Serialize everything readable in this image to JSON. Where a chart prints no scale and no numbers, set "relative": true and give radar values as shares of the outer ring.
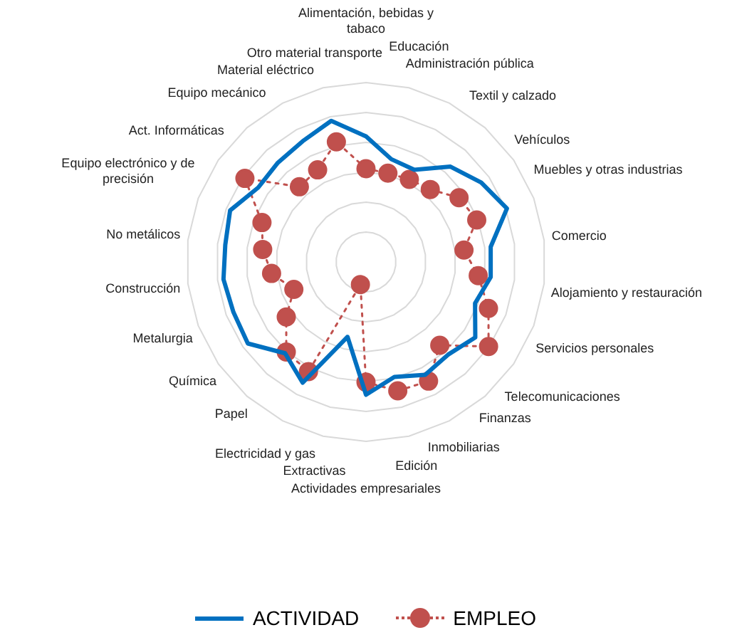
{
  "chart_data": {
    "type": "radar",
    "relative": true,
    "grid": true,
    "legend": "bottom",
    "categories": [
      "Alimentación, bebidas y tabaco",
      "Educación",
      "Administración pública",
      "Textil y calzado",
      "Vehículos",
      "Muebles y otras industrias",
      "Comercio",
      "Alojamiento y restauración",
      "Servicios personales",
      "Telecomunicaciones",
      "Finanzas",
      "Inmobiliarias",
      "Edición",
      "Actividades empresariales",
      "Extractivas",
      "Electricidad y gas",
      "Papel",
      "Química",
      "Metalurgia",
      "Construcción",
      "No metálicos",
      "Equipo electrónico y de precisión",
      "Act. Informáticas",
      "Equipo mecánico",
      "Material eléctrico",
      "Otro material transporte"
    ],
    "series": [
      {
        "name": "ACTIVIDAD",
        "color": "#0070c0",
        "marker": "none",
        "line_style": "solid",
        "values": [
          0.7,
          0.59,
          0.58,
          0.71,
          0.78,
          0.84,
          0.7,
          0.7,
          0.65,
          0.74,
          0.69,
          0.71,
          0.66,
          0.74,
          0.43,
          0.76,
          0.68,
          0.8,
          0.79,
          0.8,
          0.79,
          0.81,
          0.73,
          0.74,
          0.76,
          0.81
        ]
      },
      {
        "name": "EMPLEO",
        "color": "#c0504d",
        "marker": "circle",
        "line_style": "dotted",
        "values": [
          0.52,
          0.51,
          0.52,
          0.54,
          0.63,
          0.66,
          0.55,
          0.63,
          0.73,
          0.83,
          0.62,
          0.75,
          0.74,
          0.67,
          0.13,
          0.69,
          0.67,
          0.54,
          0.43,
          0.53,
          0.58,
          0.62,
          0.82,
          0.56,
          0.58,
          0.69
        ]
      }
    ]
  }
}
